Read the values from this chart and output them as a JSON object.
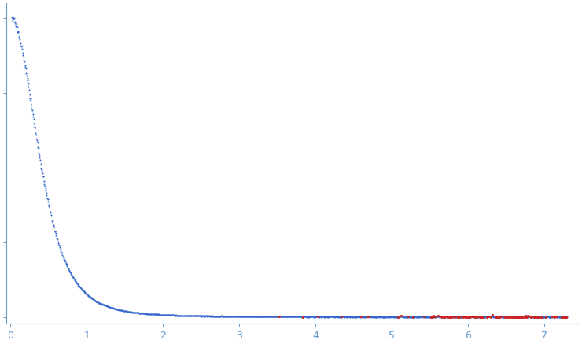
{
  "title": "",
  "x_label": "",
  "y_label": "",
  "xlim": [
    -0.05,
    7.45
  ],
  "dot_color_main": "#3366cc",
  "dot_color_outlier": "#cc2222",
  "error_bar_color": "#aac8e8",
  "error_bar_alpha": 0.6,
  "background_color": "#ffffff",
  "tick_color": "#6699cc",
  "axis_color": "#6699cc",
  "n_points": 1400,
  "seed": 17
}
